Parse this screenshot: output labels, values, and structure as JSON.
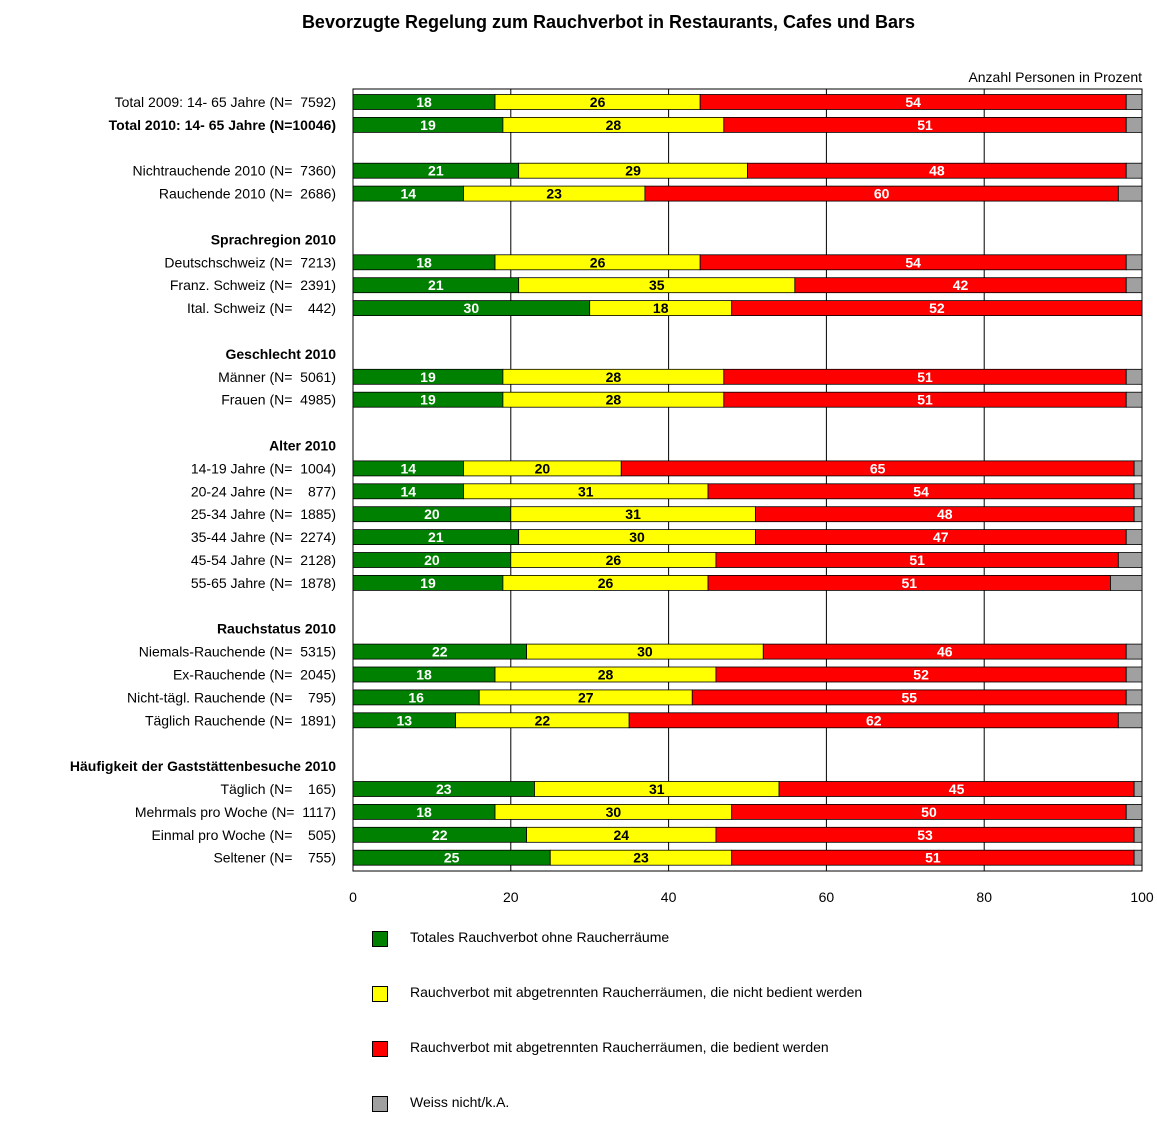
{
  "chart_data": {
    "type": "bar",
    "stacked": true,
    "orientation": "horizontal",
    "title": "Bevorzugte Regelung zum Rauchverbot in Restaurants, Cafes und Bars",
    "xlabel": "Anzahl Personen in Prozent",
    "xlim": [
      0,
      100
    ],
    "xticks": [
      "0",
      "20",
      "40",
      "60",
      "80",
      "100"
    ],
    "grid": true,
    "legend_position": "bottom",
    "colors": [
      "#008000",
      "#ffff00",
      "#ff0000",
      "#a0a0a0"
    ],
    "series": [
      {
        "name": "Totales Rauchverbot ohne Raucherräume"
      },
      {
        "name": "Rauchverbot mit abgetrennten Raucherräumen, die nicht bedient werden"
      },
      {
        "name": "Rauchverbot mit abgetrennten Raucherräumen, die bedient werden"
      },
      {
        "name": "Weiss nicht/k.A."
      }
    ],
    "rows": [
      {
        "label": "Total 2009: 14- 65 Jahre (N=  7592)",
        "bold": false,
        "values": [
          18,
          26,
          54,
          2
        ]
      },
      {
        "label": "Total 2010: 14- 65 Jahre (N=10046)",
        "bold": true,
        "values": [
          19,
          28,
          51,
          2
        ]
      },
      {
        "label": "",
        "values": null
      },
      {
        "label": "Nichtrauchende 2010 (N=  7360)",
        "values": [
          21,
          29,
          48,
          2
        ]
      },
      {
        "label": "Rauchende 2010 (N=  2686)",
        "values": [
          14,
          23,
          60,
          3
        ]
      },
      {
        "label": "",
        "values": null
      },
      {
        "label": "Sprachregion 2010",
        "heading": true,
        "values": null
      },
      {
        "label": "Deutschschweiz (N=  7213)",
        "values": [
          18,
          26,
          54,
          2
        ]
      },
      {
        "label": "Franz. Schweiz (N=  2391)",
        "values": [
          21,
          35,
          42,
          2
        ]
      },
      {
        "label": "Ital. Schweiz (N=    442)",
        "values": [
          30,
          18,
          52,
          0
        ]
      },
      {
        "label": "",
        "values": null
      },
      {
        "label": "Geschlecht 2010",
        "heading": true,
        "values": null
      },
      {
        "label": "Männer (N=  5061)",
        "values": [
          19,
          28,
          51,
          2
        ]
      },
      {
        "label": "Frauen (N=  4985)",
        "values": [
          19,
          28,
          51,
          2
        ]
      },
      {
        "label": "",
        "values": null
      },
      {
        "label": "Alter 2010",
        "heading": true,
        "values": null
      },
      {
        "label": "14-19 Jahre (N=  1004)",
        "values": [
          14,
          20,
          65,
          1
        ]
      },
      {
        "label": "20-24 Jahre (N=    877)",
        "values": [
          14,
          31,
          54,
          1
        ]
      },
      {
        "label": "25-34 Jahre (N=  1885)",
        "values": [
          20,
          31,
          48,
          1
        ]
      },
      {
        "label": "35-44 Jahre (N=  2274)",
        "values": [
          21,
          30,
          47,
          2
        ]
      },
      {
        "label": "45-54 Jahre (N=  2128)",
        "values": [
          20,
          26,
          51,
          3
        ]
      },
      {
        "label": "55-65 Jahre (N=  1878)",
        "values": [
          19,
          26,
          51,
          4
        ]
      },
      {
        "label": "",
        "values": null
      },
      {
        "label": "Rauchstatus 2010",
        "heading": true,
        "values": null
      },
      {
        "label": "Niemals-Rauchende (N=  5315)",
        "values": [
          22,
          30,
          46,
          2
        ]
      },
      {
        "label": "Ex-Rauchende (N=  2045)",
        "values": [
          18,
          28,
          52,
          2
        ]
      },
      {
        "label": "Nicht-tägl. Rauchende (N=    795)",
        "values": [
          16,
          27,
          55,
          2
        ]
      },
      {
        "label": "Täglich Rauchende (N=  1891)",
        "values": [
          13,
          22,
          62,
          3
        ]
      },
      {
        "label": "",
        "values": null
      },
      {
        "label": "Häufigkeit der Gaststättenbesuche 2010",
        "heading": true,
        "values": null
      },
      {
        "label": "Täglich (N=    165)",
        "values": [
          23,
          31,
          45,
          1
        ]
      },
      {
        "label": "Mehrmals pro Woche (N=  1117)",
        "values": [
          18,
          30,
          50,
          2
        ]
      },
      {
        "label": "Einmal pro Woche (N=    505)",
        "values": [
          22,
          24,
          53,
          1
        ]
      },
      {
        "label": "Seltener (N=    755)",
        "values": [
          25,
          23,
          51,
          1
        ]
      }
    ]
  }
}
